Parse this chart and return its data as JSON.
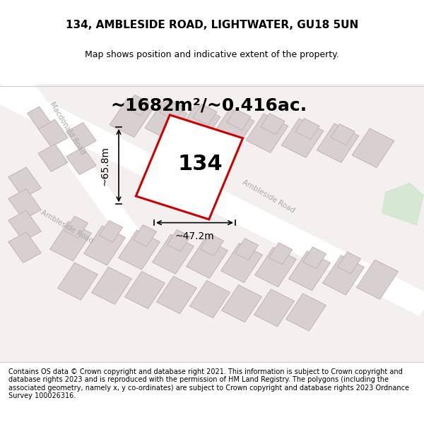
{
  "title": "134, AMBLESIDE ROAD, LIGHTWATER, GU18 5UN",
  "subtitle": "Map shows position and indicative extent of the property.",
  "area_label": "~1682m²/~0.416ac.",
  "plot_number": "134",
  "dim_width": "~47.2m",
  "dim_height": "~65.8m",
  "footer": "Contains OS data © Crown copyright and database right 2021. This information is subject to Crown copyright and database rights 2023 and is reproduced with the permission of HM Land Registry. The polygons (including the associated geometry, namely x, y co-ordinates) are subject to Crown copyright and database rights 2023 Ordnance Survey 100026316.",
  "bg_color": "#f5f0f0",
  "map_bg": "#f5f0f0",
  "road_color": "#ffffff",
  "road_stroke": "#e8c8c8",
  "building_fill": "#d8d0d0",
  "building_stroke": "#c8b8b8",
  "plot_stroke": "#cc0000",
  "plot_fill": "#ffffff",
  "dim_color": "#000000",
  "green_patch": "#d4e8d4",
  "title_fontsize": 11,
  "subtitle_fontsize": 9,
  "area_fontsize": 18,
  "plot_num_fontsize": 22,
  "dim_fontsize": 10,
  "footer_fontsize": 7
}
